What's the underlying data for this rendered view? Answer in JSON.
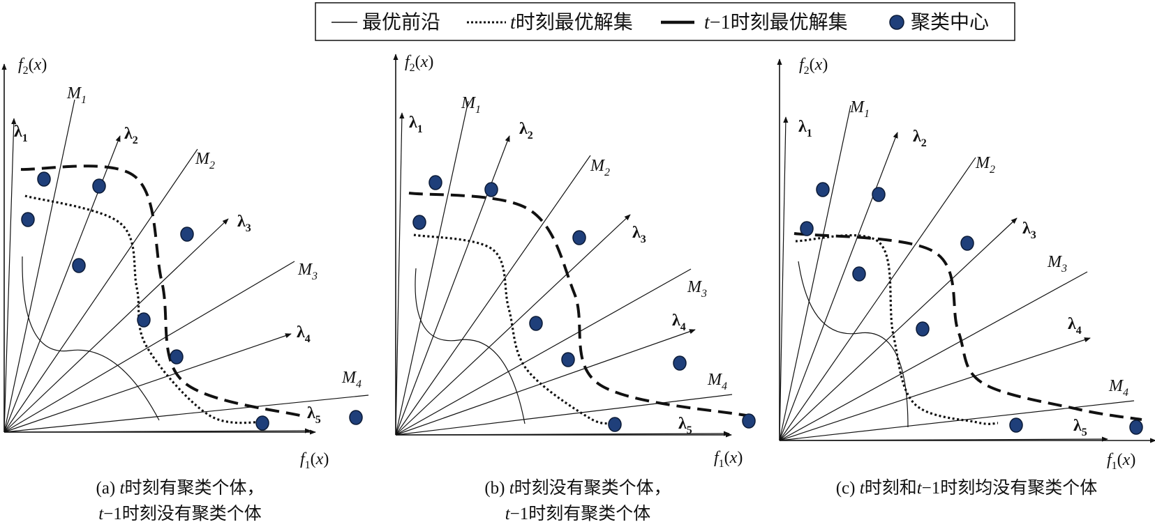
{
  "legend": {
    "items": [
      {
        "style": "solid-thin",
        "label": "最优前沿"
      },
      {
        "style": "dotted",
        "italic_prefix": "t",
        "label": "时刻最优解集"
      },
      {
        "style": "dashed-thick",
        "italic_prefix": "t",
        "minus": "−1",
        "label": "时刻最优解集"
      },
      {
        "style": "marker",
        "label": "聚类中心"
      }
    ]
  },
  "panels": [
    {
      "id": "a",
      "f1": {
        "f": "f",
        "sub": "1",
        "arg": "(x)"
      },
      "f2": {
        "f": "f",
        "sub": "2",
        "arg": "(x)"
      },
      "caption": {
        "line1": {
          "prefix": "(a) ",
          "it": "t",
          "rest": "时刻有聚类个体，"
        },
        "line2": {
          "prefix": "",
          "it": "t",
          "rest": "−1时刻没有聚类个体"
        }
      }
    },
    {
      "id": "b",
      "f1": {
        "f": "f",
        "sub": "1",
        "arg": "(x)"
      },
      "f2": {
        "f": "f",
        "sub": "2",
        "arg": "(x)"
      },
      "caption": {
        "line1": {
          "prefix": "(b) ",
          "it": "t",
          "rest": "时刻没有聚类个体，"
        },
        "line2": {
          "prefix": "",
          "it": "t",
          "rest": "−1时刻有聚类个体"
        }
      }
    },
    {
      "id": "c",
      "f1": {
        "f": "f",
        "sub": "1",
        "arg": "(x)"
      },
      "f2": {
        "f": "f",
        "sub": "2",
        "arg": "(x)"
      },
      "caption": {
        "line1": {
          "prefix": "(c) ",
          "it": "t",
          "rest": "时刻和",
          "it2": "t",
          "rest2": "−1时刻均没有聚类个体"
        }
      }
    }
  ],
  "ray_labels": {
    "lambda": [
      "λ1",
      "λ2",
      "λ3",
      "λ4",
      "λ5"
    ],
    "M": [
      "M1",
      "M2",
      "M3",
      "M4"
    ]
  },
  "colors": {
    "line": "#111111",
    "marker_fill": "#1f3f7a",
    "marker_stroke": "#0b1a36"
  }
}
